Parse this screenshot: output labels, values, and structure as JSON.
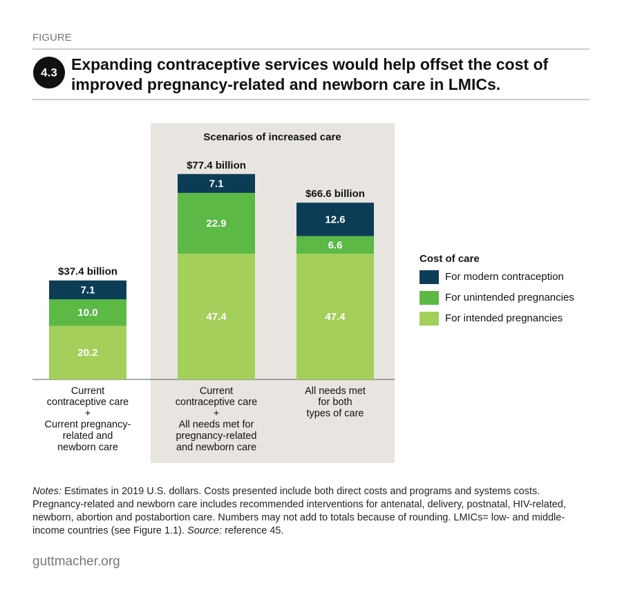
{
  "figure_label": "FIGURE",
  "figure_number": "4.3",
  "title": [
    "Expanding contraceptive services would help offset the cost of",
    "improved pregnancy-related and newborn care in LMICs."
  ],
  "chart_data": {
    "type": "stacked_bar",
    "panel_label": "Scenarios of increased care",
    "categories": [
      [
        "Current",
        "contraceptive care",
        "+",
        "Current pregnancy-",
        "related and",
        "newborn care"
      ],
      [
        "Current",
        "contraceptive care",
        "+",
        "All needs met for",
        "pregnancy-related",
        "and newborn care"
      ],
      [
        "All needs met",
        "for both",
        "types of care"
      ]
    ],
    "series": [
      {
        "name": "For intended pregnancies",
        "color": "#a3cf5a",
        "values": [
          20.2,
          47.4,
          47.4
        ]
      },
      {
        "name": "For unintended pregnancies",
        "color": "#5cb946",
        "values": [
          10.0,
          22.9,
          6.6
        ],
        "value_labels": [
          "10.0",
          "22.9",
          "6.6"
        ]
      },
      {
        "name": "For modern contraception",
        "color": "#0d3d56",
        "values": [
          7.1,
          7.1,
          12.6
        ]
      }
    ],
    "totals": {
      "values": [
        37.4,
        77.4,
        66.6
      ],
      "value_labels": [
        "$37.4 billion",
        "$77.4 billion",
        "$66.6 billion"
      ]
    },
    "legend_title": "Cost of care"
  },
  "notes": {
    "notes_label": "Notes:",
    "notes_text": "Estimates in 2019 U.S. dollars. Costs presented include both direct costs and programs and systems costs. Pregnancy-related and newborn care includes recommended interventions for antenatal, delivery, postnatal, HIV-related, newborn, abortion and postabortion care. Numbers may not add to totals because of rounding. LMICs= low- and middle-income countries (see Figure 1.1).",
    "source_label": "Source:",
    "source_text": "reference 45."
  },
  "footer": "guttmacher.org"
}
